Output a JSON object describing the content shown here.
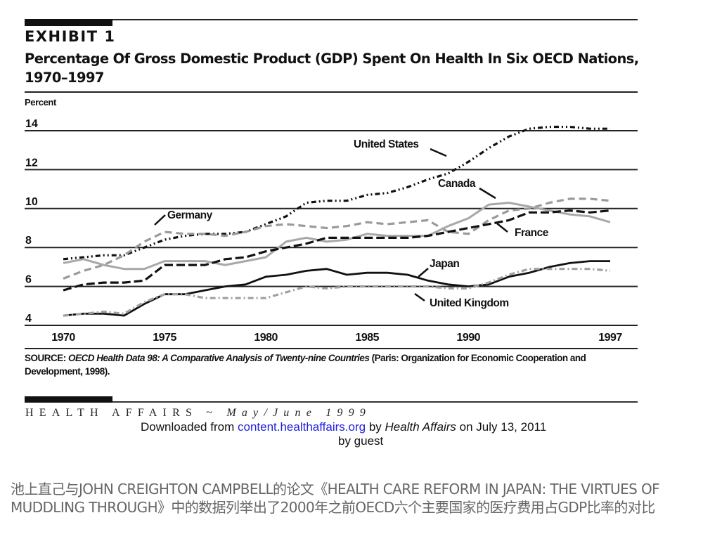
{
  "exhibit": {
    "label": "EXHIBIT 1",
    "title_line1": "Percentage Of Gross Domestic Product (GDP) Spent On Health In Six OECD Nations,",
    "title_line2": "1970–1997"
  },
  "source": {
    "prefix": "SOURCE:",
    "title": "OECD Health Data 98: A Comparative Analysis of Twenty-nine Countries",
    "rest": "(Paris: Organization for Economic Cooperation and Development, 1998)."
  },
  "footer": {
    "journal": "HEALTH AFFAIRS",
    "separator": "~",
    "issue": "May/June 1999",
    "download_prefix": "Downloaded from",
    "download_link": "content.healthaffairs.org",
    "download_by": "by",
    "download_publisher": "Health Affairs",
    "download_date": "on July 13, 2011",
    "download_guest": "by guest"
  },
  "caption": "池上直己与JOHN CREIGHTON CAMPBELL的论文《HEALTH CARE REFORM IN JAPAN: THE VIRTUES OF MUDDLING THROUGH》中的数据列举出了2000年之前OECD六个主要国家的医疗费用占GDP比率的对比",
  "chart_data": {
    "type": "line",
    "title": "Percentage Of Gross Domestic Product (GDP) Spent On Health In Six OECD Nations, 1970–1997",
    "xlabel": "",
    "ylabel": "Percent",
    "x": [
      1970,
      1971,
      1972,
      1973,
      1974,
      1975,
      1976,
      1977,
      1978,
      1979,
      1980,
      1981,
      1982,
      1983,
      1984,
      1985,
      1986,
      1987,
      1988,
      1989,
      1990,
      1991,
      1992,
      1993,
      1994,
      1995,
      1996,
      1997
    ],
    "xticks": [
      "1970",
      "1975",
      "1980",
      "1985",
      "1990",
      "1997"
    ],
    "xtick_values": [
      1970,
      1975,
      1980,
      1985,
      1990,
      1997
    ],
    "yticks": [
      "4",
      "6",
      "8",
      "10",
      "12",
      "14"
    ],
    "ytick_values": [
      4,
      6,
      8,
      10,
      12,
      14
    ],
    "ylim": [
      4,
      14
    ],
    "xlim": [
      1970,
      1997
    ],
    "grid": "horizontal",
    "legend": "inline-labels",
    "series": [
      {
        "name": "United States",
        "style": "dash-dot-dot",
        "color": "#111111",
        "values": [
          7.4,
          7.5,
          7.6,
          7.6,
          8.0,
          8.4,
          8.6,
          8.7,
          8.7,
          8.8,
          9.2,
          9.6,
          10.3,
          10.4,
          10.4,
          10.7,
          10.8,
          11.1,
          11.5,
          11.8,
          12.4,
          13.1,
          13.7,
          14.1,
          14.2,
          14.2,
          14.1,
          14.1
        ]
      },
      {
        "name": "Germany",
        "style": "dashed-gray",
        "color": "#999999",
        "values": [
          6.4,
          6.8,
          7.1,
          7.6,
          8.3,
          8.8,
          8.7,
          8.7,
          8.6,
          8.8,
          9.1,
          9.2,
          9.1,
          9.0,
          9.1,
          9.3,
          9.2,
          9.3,
          9.4,
          8.8,
          8.7,
          9.4,
          9.9,
          10.0,
          10.3,
          10.5,
          10.5,
          10.4
        ]
      },
      {
        "name": "Canada",
        "style": "solid-gray",
        "color": "#a6a6a6",
        "values": [
          7.2,
          7.4,
          7.1,
          6.9,
          6.9,
          7.3,
          7.3,
          7.3,
          7.1,
          7.3,
          7.5,
          8.3,
          8.5,
          8.3,
          8.4,
          8.7,
          8.6,
          8.6,
          8.6,
          9.1,
          9.5,
          10.2,
          10.3,
          10.1,
          9.9,
          9.7,
          9.6,
          9.3
        ]
      },
      {
        "name": "France",
        "style": "dashed-black",
        "color": "#111111",
        "values": [
          5.8,
          6.1,
          6.2,
          6.2,
          6.3,
          7.1,
          7.1,
          7.1,
          7.4,
          7.5,
          7.8,
          8.0,
          8.2,
          8.5,
          8.5,
          8.5,
          8.5,
          8.5,
          8.6,
          8.8,
          9.0,
          9.2,
          9.4,
          9.8,
          9.8,
          9.9,
          9.8,
          9.9
        ]
      },
      {
        "name": "Japan",
        "style": "solid-black",
        "color": "#111111",
        "values": [
          4.5,
          4.6,
          4.6,
          4.5,
          5.1,
          5.6,
          5.6,
          5.8,
          6.0,
          6.1,
          6.5,
          6.6,
          6.8,
          6.9,
          6.6,
          6.7,
          6.7,
          6.6,
          6.3,
          6.1,
          6.0,
          6.1,
          6.5,
          6.7,
          7.0,
          7.2,
          7.3,
          7.3
        ]
      },
      {
        "name": "United Kingdom",
        "style": "dash-dot-gray",
        "color": "#999999",
        "values": [
          4.5,
          4.6,
          4.7,
          4.6,
          5.2,
          5.6,
          5.6,
          5.4,
          5.4,
          5.4,
          5.4,
          5.7,
          6.0,
          5.9,
          6.0,
          6.0,
          6.0,
          6.0,
          6.0,
          5.9,
          5.9,
          6.2,
          6.6,
          6.9,
          6.9,
          6.9,
          6.9,
          6.8
        ]
      }
    ],
    "annotations": [
      {
        "text": "United States",
        "series": "United States"
      },
      {
        "text": "Germany",
        "series": "Germany"
      },
      {
        "text": "Canada",
        "series": "Canada"
      },
      {
        "text": "France",
        "series": "France"
      },
      {
        "text": "Japan",
        "series": "Japan"
      },
      {
        "text": "United Kingdom",
        "series": "United Kingdom"
      }
    ]
  }
}
